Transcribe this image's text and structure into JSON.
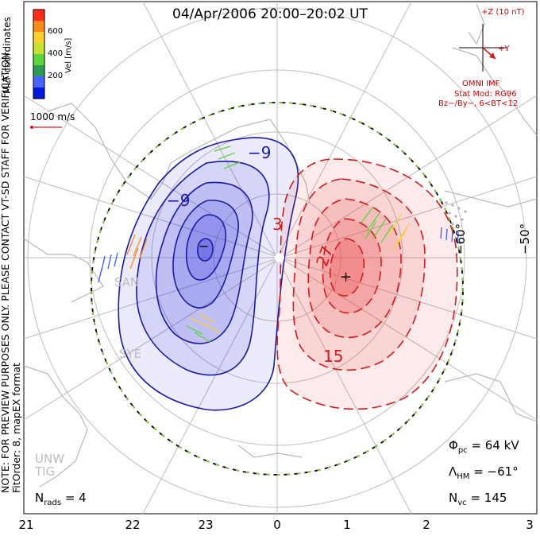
{
  "header": {
    "title": "04/Apr/2006 20:00–20:02 UT",
    "coord_label": "MLT coordinates",
    "note_line1": "NOTE: FOR PREVIEW PURPOSES ONLY. PLEASE CONTACT VT-SD STAFF FOR VERIFICATION.",
    "note_line2": "FitOrder: 8, mapEX format"
  },
  "colorbar": {
    "label": "Vel [m/s]",
    "ticks": [
      "600",
      "400",
      "200"
    ],
    "colors": [
      "#0018e0",
      "#4a64ff",
      "#2a9a56",
      "#5cd63a",
      "#c8e030",
      "#ffd02a",
      "#ff8a1a",
      "#ff2a18"
    ]
  },
  "scale_vector": {
    "label": "1000 m/s"
  },
  "imf": {
    "bz_label": "+Z (10 nT)",
    "by_label": "+Y",
    "source": "OMNI IMF",
    "model": "Stat Mod: RG96",
    "condition": "Bz−/By−, 6<BT<12"
  },
  "latitude_labels": [
    "−60°",
    "−50°"
  ],
  "mlt_ticks": [
    "21",
    "22",
    "23",
    "0",
    "1",
    "2",
    "3"
  ],
  "contours": {
    "labels": [
      "−9",
      "−9",
      "−",
      "3",
      "27",
      "15",
      "+"
    ],
    "negative_color": "#1a1aa8",
    "positive_color": "#d41a1a"
  },
  "radars": [
    "SAN",
    "SYE",
    "UNW",
    "TIG"
  ],
  "stats": {
    "phi_pc_label": "Φ",
    "phi_pc_sub": "pc",
    "phi_pc_value": "= 64 kV",
    "lambda_label": "Λ",
    "lambda_sub": "HM",
    "lambda_value": "= −61°",
    "nvc_label": "N",
    "nvc_sub": "vc",
    "nvc_value": "= 145",
    "nrads_label": "N",
    "nrads_sub": "rads",
    "nrads_value": "= 4"
  }
}
